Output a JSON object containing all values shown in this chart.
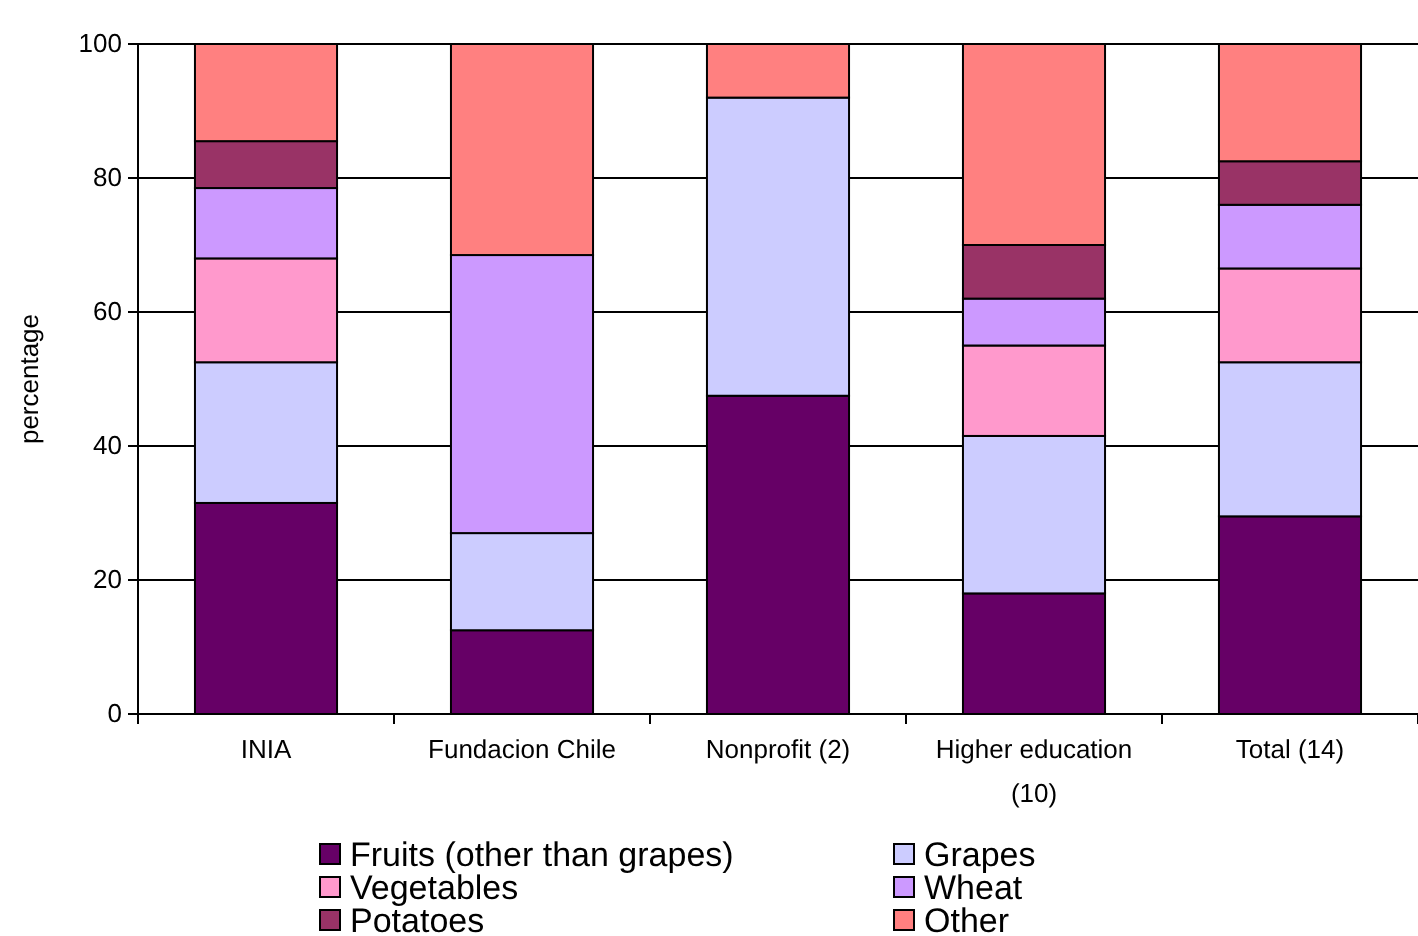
{
  "chart_data": {
    "type": "bar",
    "stacked": true,
    "ylabel": "percentage",
    "categories": [
      "INIA",
      "Fundacion Chile",
      "Nonprofit (2)",
      "Higher education (10)",
      "Total (14)"
    ],
    "series": [
      {
        "name": "Fruits (other than grapes)",
        "color": "#660066",
        "values": [
          31.5,
          12.5,
          47.5,
          18,
          29.5
        ]
      },
      {
        "name": "Grapes",
        "color": "#ccccff",
        "values": [
          21,
          14.5,
          44.5,
          23.5,
          23
        ]
      },
      {
        "name": "Vegetables",
        "color": "#ff99cc",
        "values": [
          15.5,
          null,
          null,
          13.5,
          14
        ]
      },
      {
        "name": "Wheat",
        "color": "#cc99ff",
        "values": [
          10.5,
          41.5,
          null,
          7,
          9.5
        ]
      },
      {
        "name": "Potatoes",
        "color": "#993366",
        "values": [
          7,
          null,
          null,
          8,
          6.5
        ]
      },
      {
        "name": "Other",
        "color": "#ff8080",
        "values": [
          14.5,
          31.5,
          8,
          30,
          17.5
        ]
      }
    ],
    "ylim": [
      0,
      100
    ],
    "yticks": [
      0,
      20,
      40,
      60,
      80,
      100
    ],
    "grid": "y",
    "legend": "bottom"
  }
}
